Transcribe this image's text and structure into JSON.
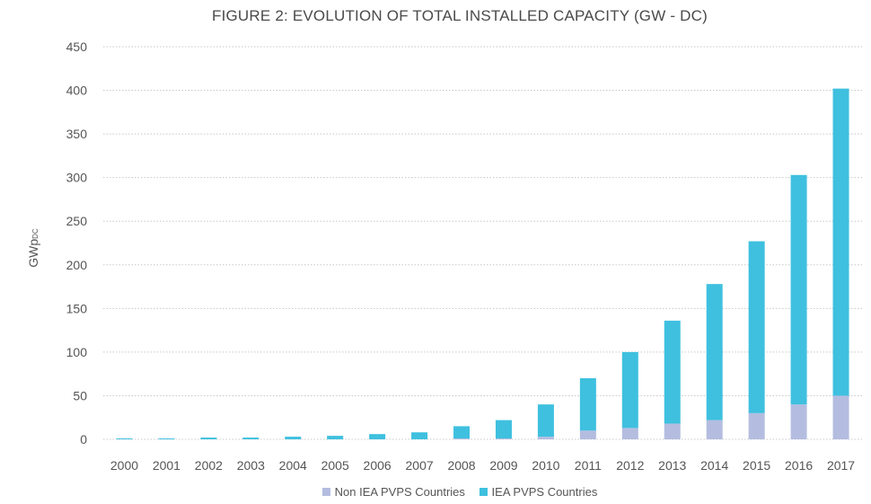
{
  "chart_data": {
    "type": "bar",
    "stacked": true,
    "title": "FIGURE 2: EVOLUTION OF TOTAL INSTALLED CAPACITY (GW - DC)",
    "ylabel": "GWp",
    "ylabel_subscript": "DC",
    "xlabel": "",
    "ylim": [
      0,
      450
    ],
    "yticks": [
      0,
      50,
      100,
      150,
      200,
      250,
      300,
      350,
      400,
      450
    ],
    "grid": true,
    "legend_position": "bottom",
    "categories": [
      "2000",
      "2001",
      "2002",
      "2003",
      "2004",
      "2005",
      "2006",
      "2007",
      "2008",
      "2009",
      "2010",
      "2011",
      "2012",
      "2013",
      "2014",
      "2015",
      "2016",
      "2017"
    ],
    "series": [
      {
        "name": "Non IEA PVPS Countries",
        "color": "#b4bde0",
        "values": [
          0,
          0,
          0,
          0,
          0,
          0,
          0,
          0,
          1,
          1,
          3,
          10,
          13,
          18,
          22,
          30,
          40,
          50
        ]
      },
      {
        "name": "IEA PVPS Countries",
        "color": "#3fc0df",
        "values": [
          1,
          1,
          2,
          2,
          3,
          4,
          6,
          8,
          14,
          21,
          37,
          60,
          87,
          118,
          156,
          197,
          263,
          352
        ]
      }
    ]
  }
}
